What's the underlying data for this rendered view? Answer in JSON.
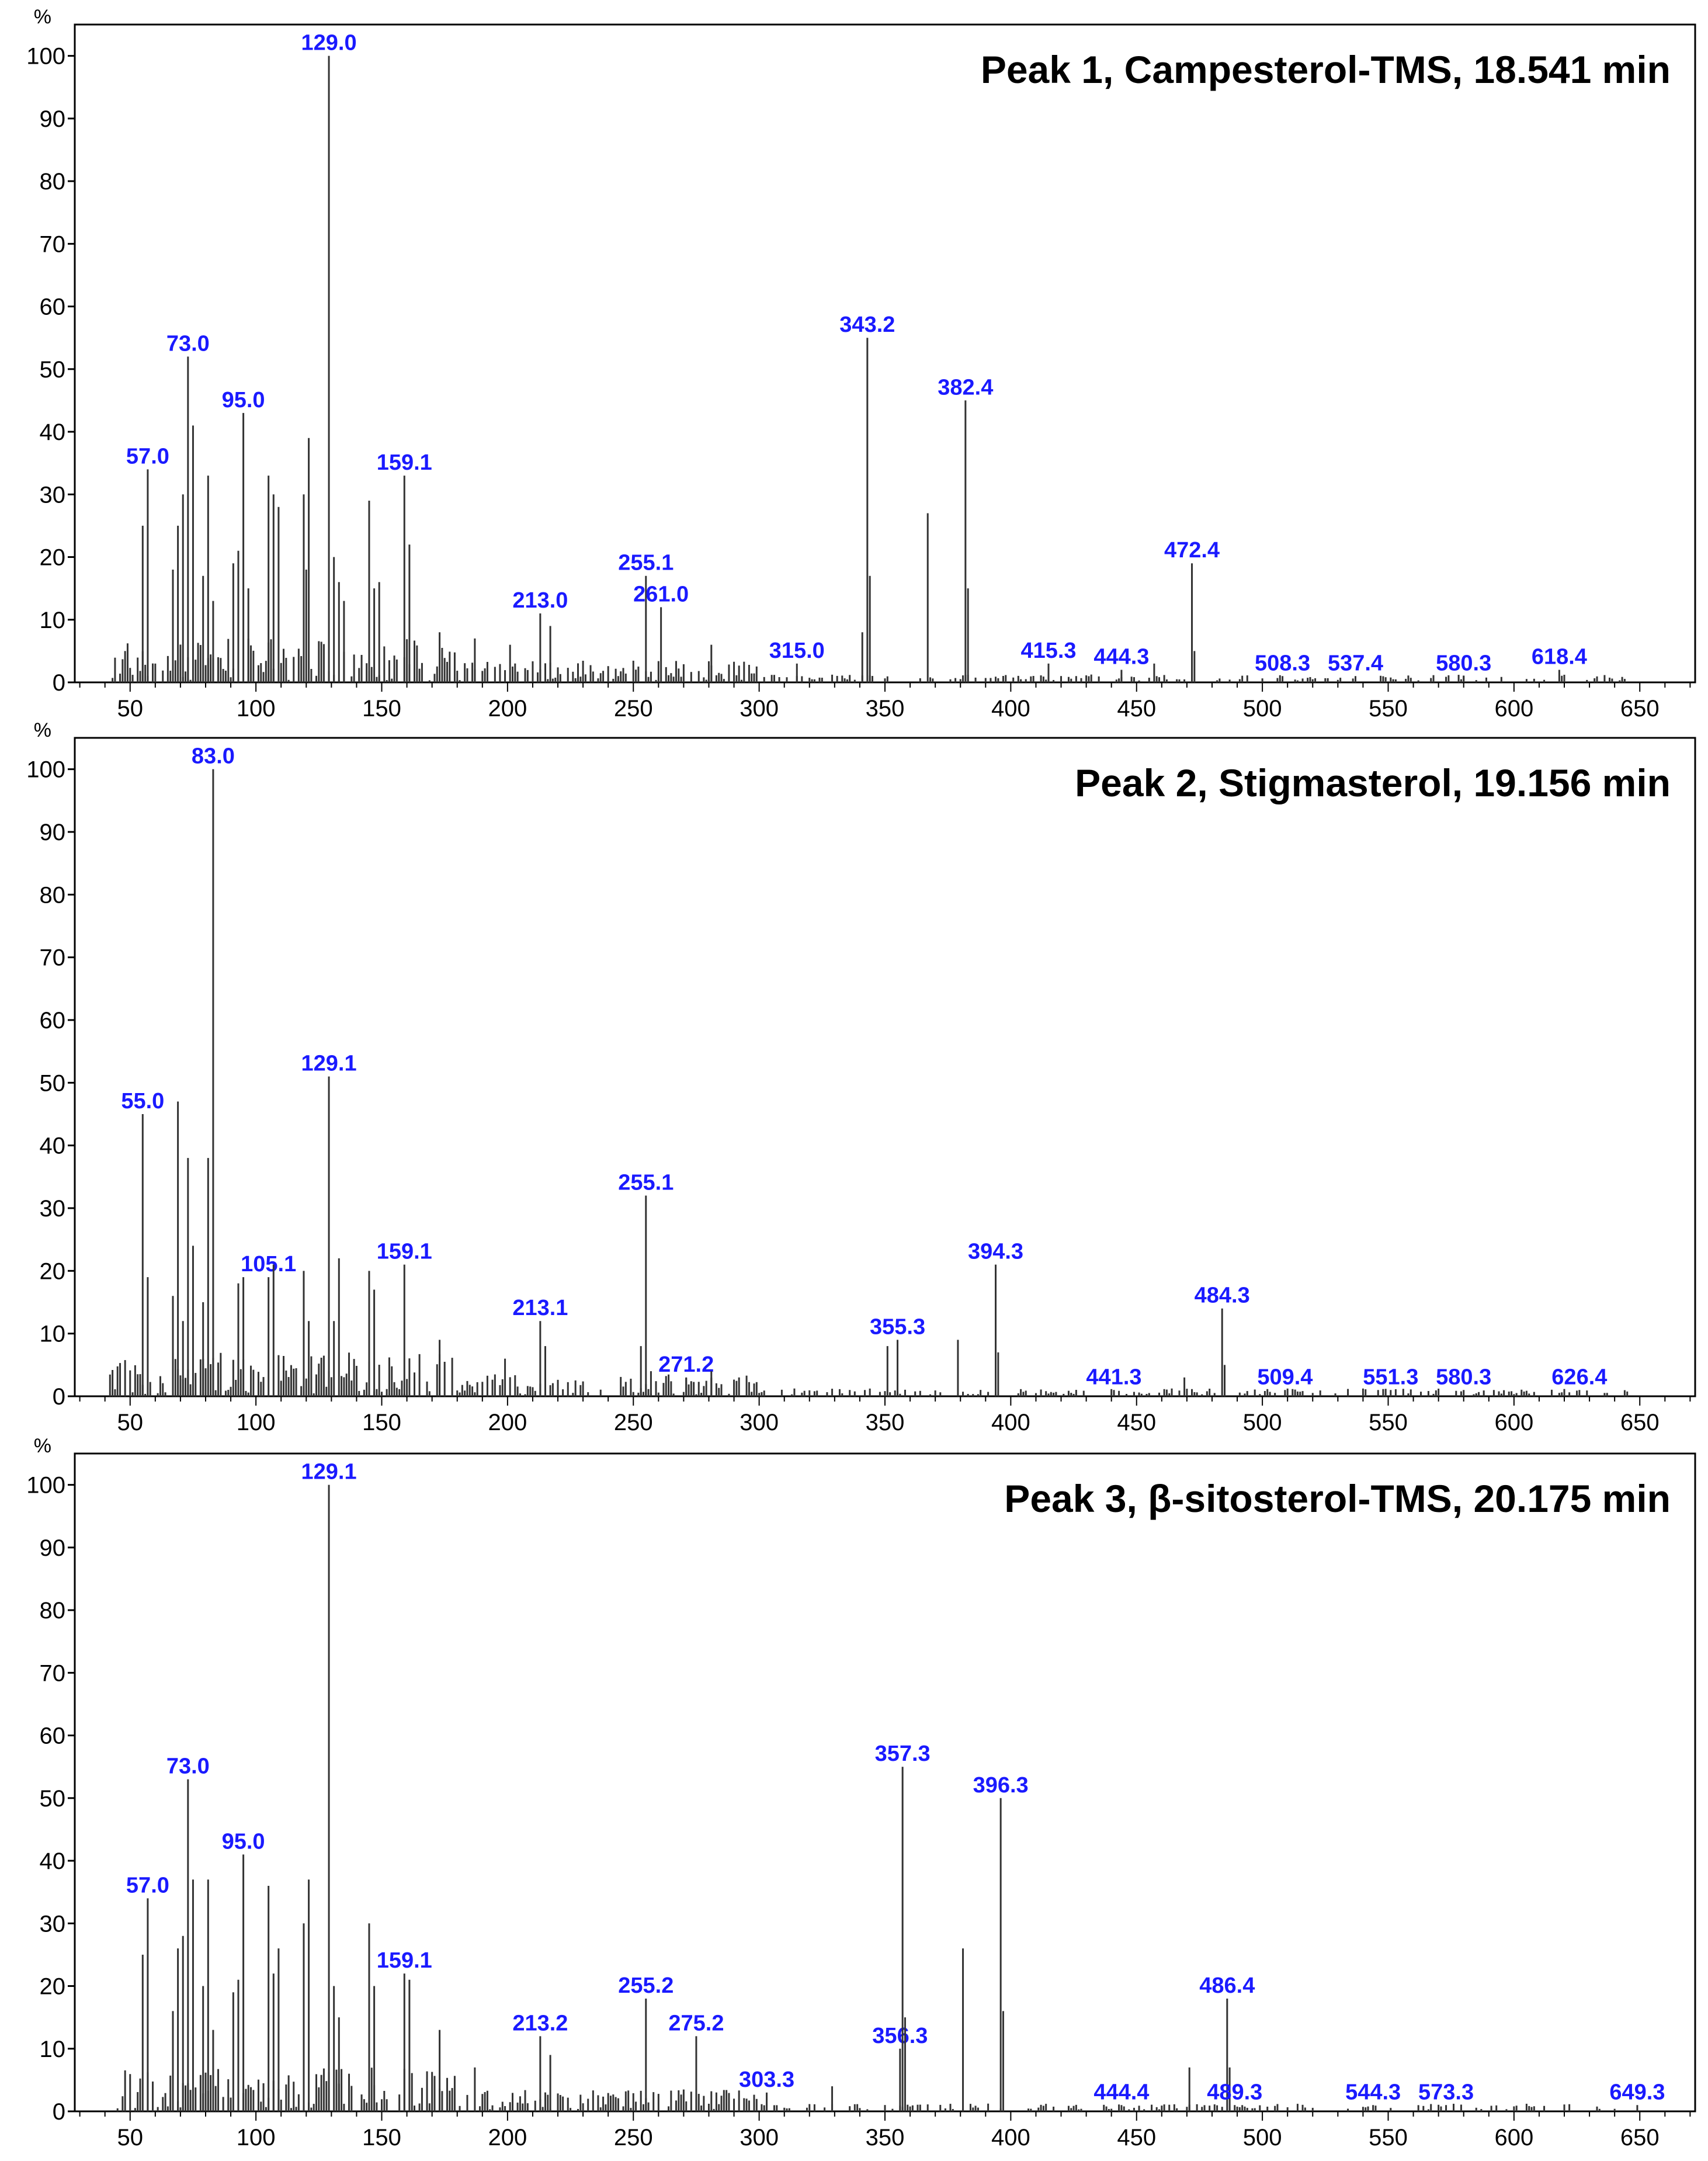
{
  "chart_data": [
    {
      "type": "bar",
      "title": "Peak 1, Campesterol-TMS, 18.541 min",
      "ylabel": "%",
      "xlim": [
        28,
        672
      ],
      "ylim": [
        0,
        105
      ],
      "xticks": [
        "50",
        "100",
        "150",
        "200",
        "250",
        "300",
        "350",
        "400",
        "450",
        "500",
        "550",
        "600",
        "650"
      ],
      "yticks": [
        "0",
        "10",
        "20",
        "30",
        "40",
        "50",
        "60",
        "70",
        "80",
        "90",
        "100"
      ],
      "peaks": [
        {
          "x": 55,
          "y": 25
        },
        {
          "x": 57,
          "y": 34,
          "label": "57.0"
        },
        {
          "x": 67,
          "y": 18
        },
        {
          "x": 69,
          "y": 25
        },
        {
          "x": 71,
          "y": 30
        },
        {
          "x": 73,
          "y": 52,
          "label": "73.0"
        },
        {
          "x": 75,
          "y": 41
        },
        {
          "x": 79,
          "y": 17
        },
        {
          "x": 81,
          "y": 33
        },
        {
          "x": 83,
          "y": 13
        },
        {
          "x": 91,
          "y": 19
        },
        {
          "x": 93,
          "y": 21
        },
        {
          "x": 95,
          "y": 43,
          "label": "95.0"
        },
        {
          "x": 97,
          "y": 15
        },
        {
          "x": 105,
          "y": 33
        },
        {
          "x": 107,
          "y": 30
        },
        {
          "x": 109,
          "y": 28
        },
        {
          "x": 119,
          "y": 30
        },
        {
          "x": 120,
          "y": 18
        },
        {
          "x": 121,
          "y": 39
        },
        {
          "x": 129,
          "y": 100,
          "label": "129.0"
        },
        {
          "x": 131,
          "y": 20
        },
        {
          "x": 133,
          "y": 16
        },
        {
          "x": 135,
          "y": 13
        },
        {
          "x": 145,
          "y": 29
        },
        {
          "x": 147,
          "y": 15
        },
        {
          "x": 149,
          "y": 16
        },
        {
          "x": 159,
          "y": 33,
          "label": "159.1"
        },
        {
          "x": 161,
          "y": 22
        },
        {
          "x": 173,
          "y": 8
        },
        {
          "x": 187,
          "y": 7
        },
        {
          "x": 201,
          "y": 6
        },
        {
          "x": 213,
          "y": 11,
          "label": "213.0"
        },
        {
          "x": 217,
          "y": 9
        },
        {
          "x": 255,
          "y": 17,
          "label": "255.1"
        },
        {
          "x": 261,
          "y": 12,
          "label": "261.0"
        },
        {
          "x": 281,
          "y": 6
        },
        {
          "x": 315,
          "y": 3,
          "label": "315.0"
        },
        {
          "x": 341,
          "y": 8
        },
        {
          "x": 343,
          "y": 55,
          "label": "343.2"
        },
        {
          "x": 344,
          "y": 17
        },
        {
          "x": 367,
          "y": 27
        },
        {
          "x": 382,
          "y": 45,
          "label": "382.4"
        },
        {
          "x": 383,
          "y": 15
        },
        {
          "x": 415,
          "y": 3,
          "label": "415.3"
        },
        {
          "x": 444,
          "y": 2,
          "label": "444.3"
        },
        {
          "x": 457,
          "y": 3
        },
        {
          "x": 472,
          "y": 19,
          "label": "472.4"
        },
        {
          "x": 473,
          "y": 5
        },
        {
          "x": 508,
          "y": 1,
          "label": "508.3"
        },
        {
          "x": 537,
          "y": 1,
          "label": "537.4"
        },
        {
          "x": 580,
          "y": 1,
          "label": "580.3"
        },
        {
          "x": 618,
          "y": 2,
          "label": "618.4"
        }
      ]
    },
    {
      "type": "bar",
      "title": "Peak 2, Stigmasterol, 19.156 min",
      "ylabel": "%",
      "xlim": [
        28,
        672
      ],
      "ylim": [
        0,
        105
      ],
      "xticks": [
        "50",
        "100",
        "150",
        "200",
        "250",
        "300",
        "350",
        "400",
        "450",
        "500",
        "550",
        "600",
        "650"
      ],
      "yticks": [
        "0",
        "10",
        "20",
        "30",
        "40",
        "50",
        "60",
        "70",
        "80",
        "90",
        "100"
      ],
      "peaks": [
        {
          "x": 55,
          "y": 45,
          "label": "55.0"
        },
        {
          "x": 57,
          "y": 19
        },
        {
          "x": 67,
          "y": 16
        },
        {
          "x": 69,
          "y": 47
        },
        {
          "x": 71,
          "y": 12
        },
        {
          "x": 73,
          "y": 38
        },
        {
          "x": 75,
          "y": 24
        },
        {
          "x": 79,
          "y": 15
        },
        {
          "x": 81,
          "y": 38
        },
        {
          "x": 83,
          "y": 100,
          "label": "83.0"
        },
        {
          "x": 93,
          "y": 18
        },
        {
          "x": 95,
          "y": 19
        },
        {
          "x": 105,
          "y": 19,
          "label": "105.1"
        },
        {
          "x": 107,
          "y": 21
        },
        {
          "x": 119,
          "y": 20
        },
        {
          "x": 121,
          "y": 12
        },
        {
          "x": 129,
          "y": 51,
          "label": "129.1"
        },
        {
          "x": 131,
          "y": 12
        },
        {
          "x": 133,
          "y": 22
        },
        {
          "x": 145,
          "y": 20
        },
        {
          "x": 147,
          "y": 17
        },
        {
          "x": 159,
          "y": 21,
          "label": "159.1"
        },
        {
          "x": 173,
          "y": 9
        },
        {
          "x": 199,
          "y": 6
        },
        {
          "x": 213,
          "y": 12,
          "label": "213.1"
        },
        {
          "x": 215,
          "y": 8
        },
        {
          "x": 253,
          "y": 8
        },
        {
          "x": 255,
          "y": 32,
          "label": "255.1"
        },
        {
          "x": 257,
          "y": 4
        },
        {
          "x": 271,
          "y": 3,
          "label": "271.2"
        },
        {
          "x": 281,
          "y": 4
        },
        {
          "x": 351,
          "y": 8
        },
        {
          "x": 355,
          "y": 9,
          "label": "355.3"
        },
        {
          "x": 379,
          "y": 9
        },
        {
          "x": 394,
          "y": 21,
          "label": "394.3"
        },
        {
          "x": 395,
          "y": 7
        },
        {
          "x": 441,
          "y": 1,
          "label": "441.3"
        },
        {
          "x": 469,
          "y": 3
        },
        {
          "x": 484,
          "y": 14,
          "label": "484.3"
        },
        {
          "x": 485,
          "y": 5
        },
        {
          "x": 509,
          "y": 1,
          "label": "509.4"
        },
        {
          "x": 551,
          "y": 1,
          "label": "551.3"
        },
        {
          "x": 580,
          "y": 1,
          "label": "580.3"
        },
        {
          "x": 626,
          "y": 1,
          "label": "626.4"
        }
      ]
    },
    {
      "type": "bar",
      "title": "Peak 3, β-sitosterol-TMS, 20.175 min",
      "ylabel": "%",
      "xlim": [
        28,
        672
      ],
      "ylim": [
        0,
        105
      ],
      "xticks": [
        "50",
        "100",
        "150",
        "200",
        "250",
        "300",
        "350",
        "400",
        "450",
        "500",
        "550",
        "600",
        "650"
      ],
      "yticks": [
        "0",
        "10",
        "20",
        "30",
        "40",
        "50",
        "60",
        "70",
        "80",
        "90",
        "100"
      ],
      "peaks": [
        {
          "x": 55,
          "y": 25
        },
        {
          "x": 57,
          "y": 34,
          "label": "57.0"
        },
        {
          "x": 67,
          "y": 16
        },
        {
          "x": 69,
          "y": 26
        },
        {
          "x": 71,
          "y": 28
        },
        {
          "x": 73,
          "y": 53,
          "label": "73.0"
        },
        {
          "x": 75,
          "y": 37
        },
        {
          "x": 79,
          "y": 20
        },
        {
          "x": 81,
          "y": 37
        },
        {
          "x": 83,
          "y": 13
        },
        {
          "x": 91,
          "y": 19
        },
        {
          "x": 93,
          "y": 21
        },
        {
          "x": 95,
          "y": 41,
          "label": "95.0"
        },
        {
          "x": 105,
          "y": 36
        },
        {
          "x": 107,
          "y": 22
        },
        {
          "x": 109,
          "y": 26
        },
        {
          "x": 119,
          "y": 30
        },
        {
          "x": 121,
          "y": 37
        },
        {
          "x": 129,
          "y": 100,
          "label": "129.1"
        },
        {
          "x": 131,
          "y": 20
        },
        {
          "x": 133,
          "y": 15
        },
        {
          "x": 145,
          "y": 30
        },
        {
          "x": 147,
          "y": 20
        },
        {
          "x": 159,
          "y": 22,
          "label": "159.1"
        },
        {
          "x": 161,
          "y": 21
        },
        {
          "x": 173,
          "y": 13
        },
        {
          "x": 187,
          "y": 7
        },
        {
          "x": 213,
          "y": 12,
          "label": "213.2"
        },
        {
          "x": 217,
          "y": 9
        },
        {
          "x": 255,
          "y": 18,
          "label": "255.2"
        },
        {
          "x": 275,
          "y": 12,
          "label": "275.2"
        },
        {
          "x": 303,
          "y": 3,
          "label": "303.3"
        },
        {
          "x": 329,
          "y": 4
        },
        {
          "x": 356,
          "y": 10,
          "label": "356.3"
        },
        {
          "x": 357,
          "y": 55,
          "label": "357.3"
        },
        {
          "x": 358,
          "y": 15
        },
        {
          "x": 381,
          "y": 26
        },
        {
          "x": 396,
          "y": 50,
          "label": "396.3"
        },
        {
          "x": 397,
          "y": 16
        },
        {
          "x": 444,
          "y": 1,
          "label": "444.4"
        },
        {
          "x": 471,
          "y": 7
        },
        {
          "x": 486,
          "y": 18,
          "label": "486.4"
        },
        {
          "x": 487,
          "y": 7
        },
        {
          "x": 489,
          "y": 1,
          "label": "489.3"
        },
        {
          "x": 544,
          "y": 1,
          "label": "544.3"
        },
        {
          "x": 573,
          "y": 1,
          "label": "573.3"
        },
        {
          "x": 649,
          "y": 1,
          "label": "649.3"
        }
      ]
    }
  ]
}
